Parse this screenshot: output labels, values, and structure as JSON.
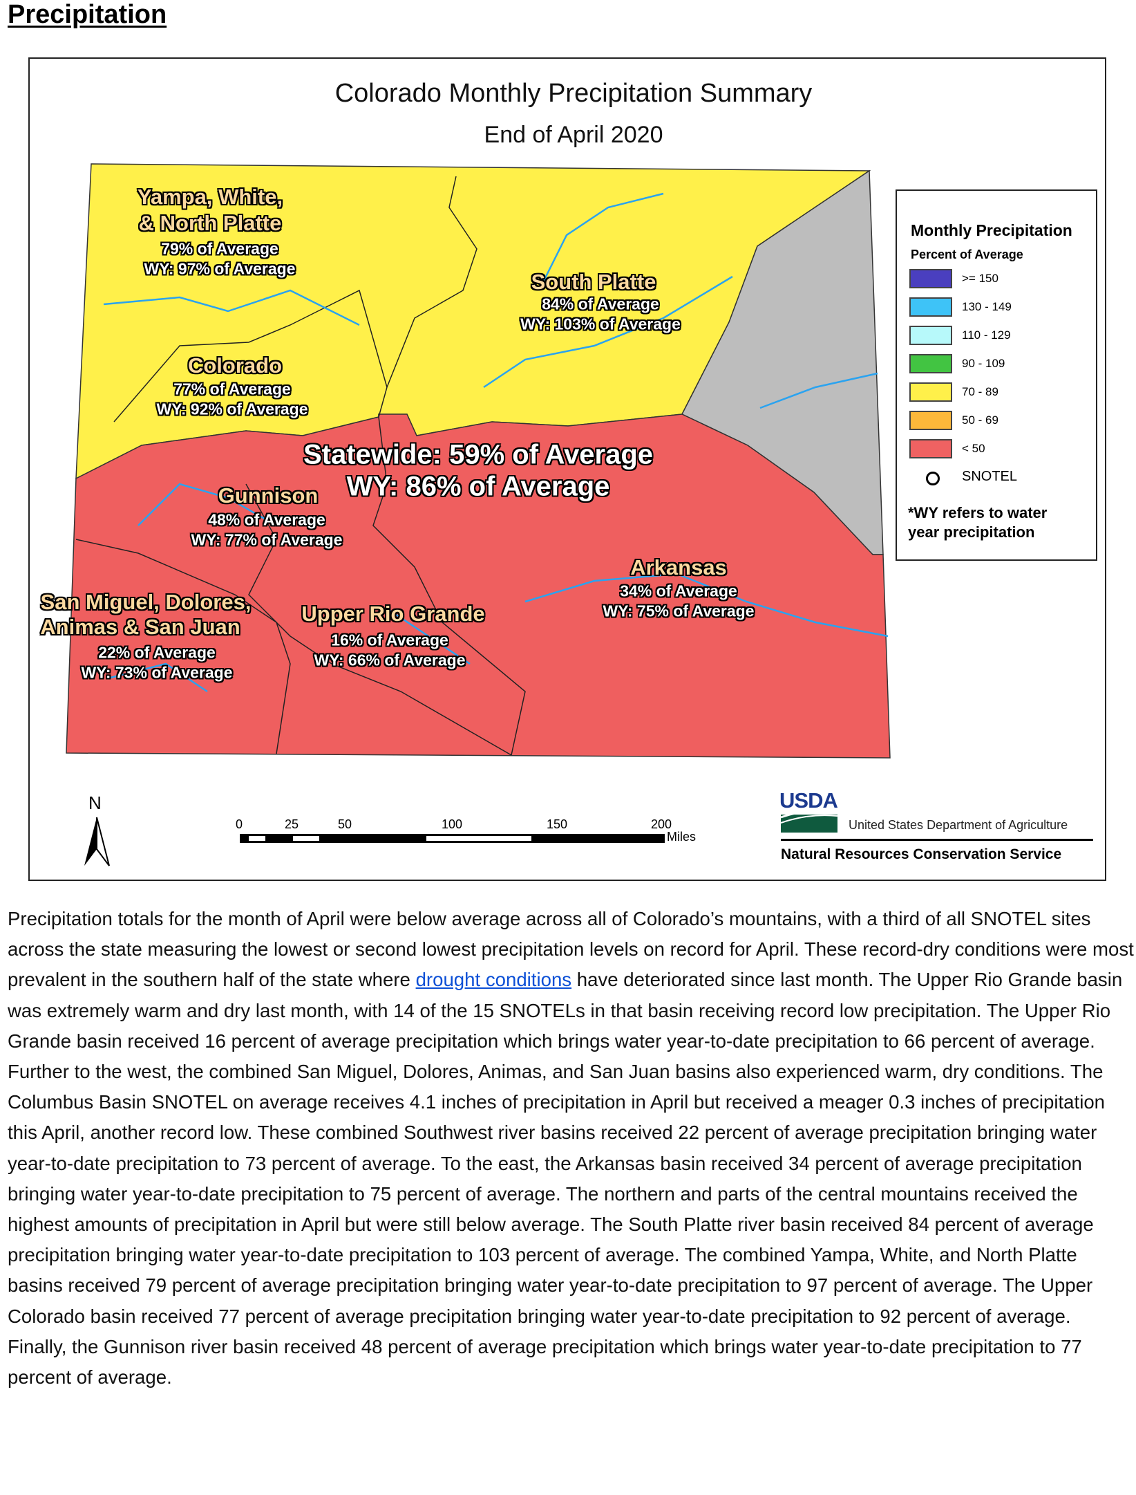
{
  "section_heading": "Precipitation",
  "map": {
    "title": "Colorado Monthly Precipitation Summary",
    "subtitle": "End of April 2020",
    "statewide": {
      "line1": "Statewide: 59% of Average",
      "line2": "WY: 86% of Average"
    },
    "basins": [
      {
        "name_lines": [
          "Yampa, White,",
          "& North Platte"
        ],
        "monthly": "79% of Average",
        "wy": "WY: 97% of Average",
        "category": "70 - 89"
      },
      {
        "name_lines": [
          "South Platte"
        ],
        "monthly": "84% of Average",
        "wy": "WY: 103% of Average",
        "category": "70 - 89"
      },
      {
        "name_lines": [
          "Colorado"
        ],
        "monthly": "77% of Average",
        "wy": "WY: 92% of Average",
        "category": "70 - 89"
      },
      {
        "name_lines": [
          "Gunnison"
        ],
        "monthly": "48% of Average",
        "wy": "WY: 77% of Average",
        "category": "< 50"
      },
      {
        "name_lines": [
          "San Miguel, Dolores,",
          "Animas & San Juan"
        ],
        "monthly": "22% of Average",
        "wy": "WY: 73% of Average",
        "category": "< 50"
      },
      {
        "name_lines": [
          "Upper Rio Grande"
        ],
        "monthly": "16% of Average",
        "wy": "WY: 66% of Average",
        "category": "< 50"
      },
      {
        "name_lines": [
          "Arkansas"
        ],
        "monthly": "34% of Average",
        "wy": "WY: 75% of Average",
        "category": "< 50"
      }
    ],
    "colors": {
      "yellow": "#fff04a",
      "red": "#ef5f5f",
      "gray": "#bdbdbd",
      "river": "#2aa3f0"
    },
    "legend": {
      "title": "Monthly Precipitation",
      "subtitle": "Percent of Average",
      "items": [
        {
          "label": ">= 150",
          "color": "#4a3fbf"
        },
        {
          "label": "130 - 149",
          "color": "#3ec3f7"
        },
        {
          "label": "110 - 129",
          "color": "#b7f9fa"
        },
        {
          "label": "90 - 109",
          "color": "#42c442"
        },
        {
          "label": "70 - 89",
          "color": "#fff04a"
        },
        {
          "label": "50 - 69",
          "color": "#fcb83a"
        },
        {
          "label": "< 50",
          "color": "#ef6262"
        }
      ],
      "snotel_label": "SNOTEL",
      "note": "*WY refers to water year precipitation"
    },
    "north_label": "N",
    "scale": {
      "ticks": [
        "0",
        "25",
        "50",
        "100",
        "150",
        "200"
      ],
      "unit": "Miles"
    },
    "agency": {
      "logo_text": "USDA",
      "department": "United States Department of Agriculture",
      "service": "Natural Resources Conservation Service"
    }
  },
  "paragraph": {
    "before_link": "Precipitation totals for the month of April were below average across all of Colorado’s mountains, with a third of all SNOTEL sites across the state measuring the lowest or second lowest precipitation levels on record for April. These record-dry conditions were most prevalent in the southern half of the state where ",
    "link": "drought conditions",
    "after_link": " have deteriorated since last month. The Upper Rio Grande basin was extremely warm and dry last month, with 14 of the 15 SNOTELs in that basin receiving record low precipitation. The Upper Rio Grande basin received 16 percent of average precipitation which brings water year-to-date precipitation to 66 percent of average. Further to the west, the combined San Miguel, Dolores, Animas, and San Juan basins also experienced warm, dry conditions.  The Columbus Basin SNOTEL on average receives 4.1 inches of precipitation in April but received a meager 0.3 inches of precipitation this April, another record low. These combined Southwest river basins received 22 percent of average precipitation bringing water year-to-date precipitation to 73 percent of average. To the east, the Arkansas basin received 34 percent of average precipitation bringing water year-to-date precipitation to 75 percent of average. The northern and parts of the central mountains received the highest amounts of precipitation in April but were still below average. The South Platte river basin received 84 percent of average precipitation bringing water year-to-date precipitation to 103 percent of average. The combined Yampa, White, and North Platte basins received 79 percent of average precipitation bringing water year-to-date precipitation to 97 percent of average. The Upper Colorado basin received 77 percent of average precipitation bringing water year-to-date precipitation to 92 percent of average. Finally, the Gunnison river basin received 48 percent of average precipitation which brings water year-to-date precipitation to 77 percent of average."
  }
}
